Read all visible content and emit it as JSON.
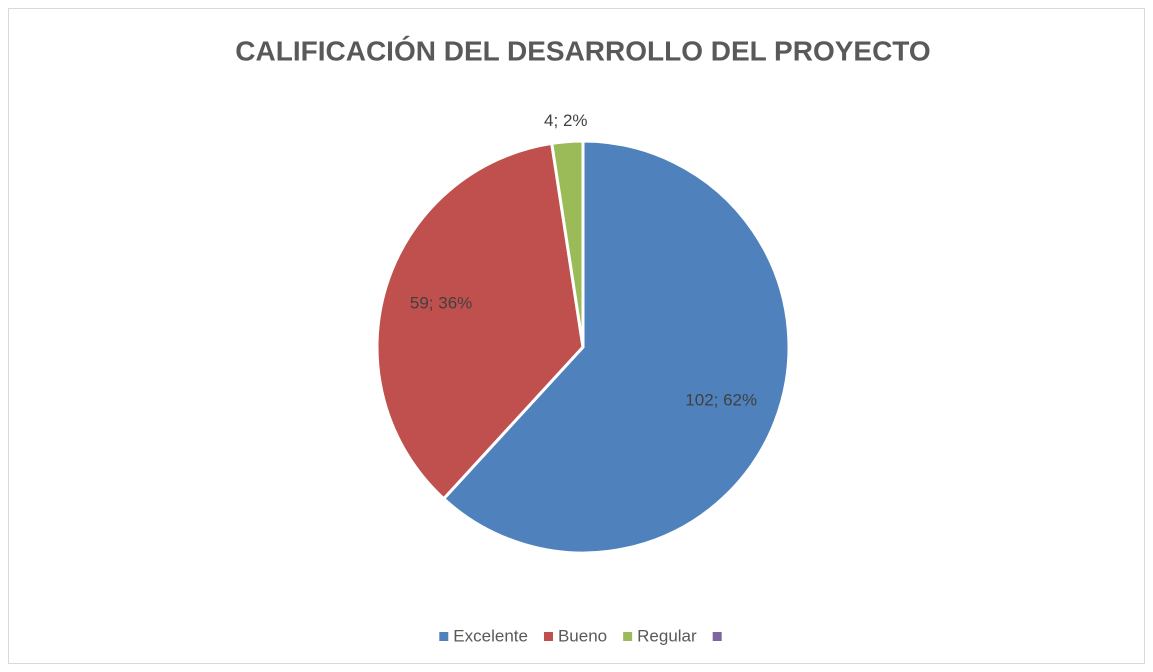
{
  "chart_data": {
    "type": "pie",
    "title": "CALIFICACIÓN DEL DESARROLLO DEL PROYECTO",
    "categories": [
      "Excelente",
      "Bueno",
      "Regular",
      null
    ],
    "values": [
      102,
      59,
      4,
      0
    ],
    "value_labels": [
      "102; 62%",
      "59; 36%",
      "4; 2%",
      null
    ],
    "colors": [
      "#4f81bd",
      "#c0504d",
      "#9bbb59",
      "#8064a2"
    ],
    "legend": "bottom"
  }
}
